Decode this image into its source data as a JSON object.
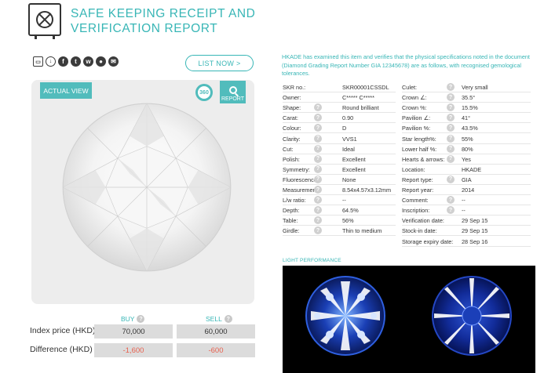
{
  "header": {
    "title": "SAFE KEEPING RECEIPT AND VERIFICATION REPORT"
  },
  "toolbar": {
    "share_icons": [
      "printer-icon",
      "download-icon",
      "facebook-icon",
      "twitter-icon",
      "weibo-icon",
      "wechat-icon",
      "email-icon"
    ],
    "list_now_label": "LIST NOW >"
  },
  "viewer": {
    "actual_view_label": "ACTUAL VIEW",
    "btn_360_label": "360",
    "report_label": "REPORT"
  },
  "prices": {
    "buy_label": "BUY",
    "sell_label": "SELL",
    "rows": [
      {
        "label": "Index price (HKD)",
        "buy": "70,000",
        "sell": "60,000"
      },
      {
        "label": "Difference (HKD)",
        "buy": "-1,600",
        "sell": "-600"
      }
    ],
    "difference_color": "#e8614f"
  },
  "intro_text": "HKADE has examined this item and verifies that the physical specifications noted in the document (Diamond Grading Report Number GIA 12345678) are as follows, with recognised gemological tolerances.",
  "specs_left": [
    {
      "label": "SKR no.:",
      "value": "SKR00001CSSDL",
      "q": false
    },
    {
      "label": "Owner:",
      "value": "C***** C*****",
      "q": false
    },
    {
      "label": "Shape:",
      "value": "Round brilliant",
      "q": true
    },
    {
      "label": "Carat:",
      "value": "0.90",
      "q": true
    },
    {
      "label": "Colour:",
      "value": "D",
      "q": true
    },
    {
      "label": "Clarity:",
      "value": "VVS1",
      "q": true
    },
    {
      "label": "Cut:",
      "value": "Ideal",
      "q": true
    },
    {
      "label": "Polish:",
      "value": "Excellent",
      "q": true
    },
    {
      "label": "Symmetry:",
      "value": "Excellent",
      "q": true
    },
    {
      "label": "Fluorescence:",
      "value": "None",
      "q": true
    },
    {
      "label": "Measurement:",
      "value": "8.54x4.57x3.12mm",
      "q": true
    },
    {
      "label": "L/w ratio:",
      "value": "--",
      "q": true
    },
    {
      "label": "Depth:",
      "value": "64.5%",
      "q": true
    },
    {
      "label": "Table:",
      "value": "56%",
      "q": true
    },
    {
      "label": "Girdle:",
      "value": "Thin to medium",
      "q": true
    }
  ],
  "specs_right": [
    {
      "label": "Culet:",
      "value": "Very small",
      "q": true
    },
    {
      "label": "Crown ∠:",
      "value": "35.5°",
      "q": true
    },
    {
      "label": "Crown %:",
      "value": "15.5%",
      "q": true
    },
    {
      "label": "Pavilion ∠:",
      "value": "41°",
      "q": true
    },
    {
      "label": "Pavilion %:",
      "value": "43.5%",
      "q": true
    },
    {
      "label": "Star length%:",
      "value": "55%",
      "q": true
    },
    {
      "label": "Lower half %:",
      "value": "80%",
      "q": true
    },
    {
      "label": "Hearts & arrows:",
      "value": "Yes",
      "q": true
    },
    {
      "label": "Location:",
      "value": "HKADE",
      "q": false
    },
    {
      "label": "Report type:",
      "value": "GIA",
      "q": true
    },
    {
      "label": "Report year:",
      "value": "2014",
      "q": false
    },
    {
      "label": "Comment:",
      "value": "--",
      "q": true
    },
    {
      "label": "Inscription:",
      "value": "--",
      "q": true
    },
    {
      "label": "Verification date:",
      "value": "29 Sep 15",
      "q": false
    },
    {
      "label": "Stock-in date:",
      "value": "29 Sep 15",
      "q": false
    },
    {
      "label": "Storage expiry date:",
      "value": "28 Sep 16",
      "q": false
    }
  ],
  "light_performance": {
    "title": "LIGHT PERFORMANCE"
  },
  "colors": {
    "accent": "#38b6b6",
    "button": "#51bcbc"
  }
}
